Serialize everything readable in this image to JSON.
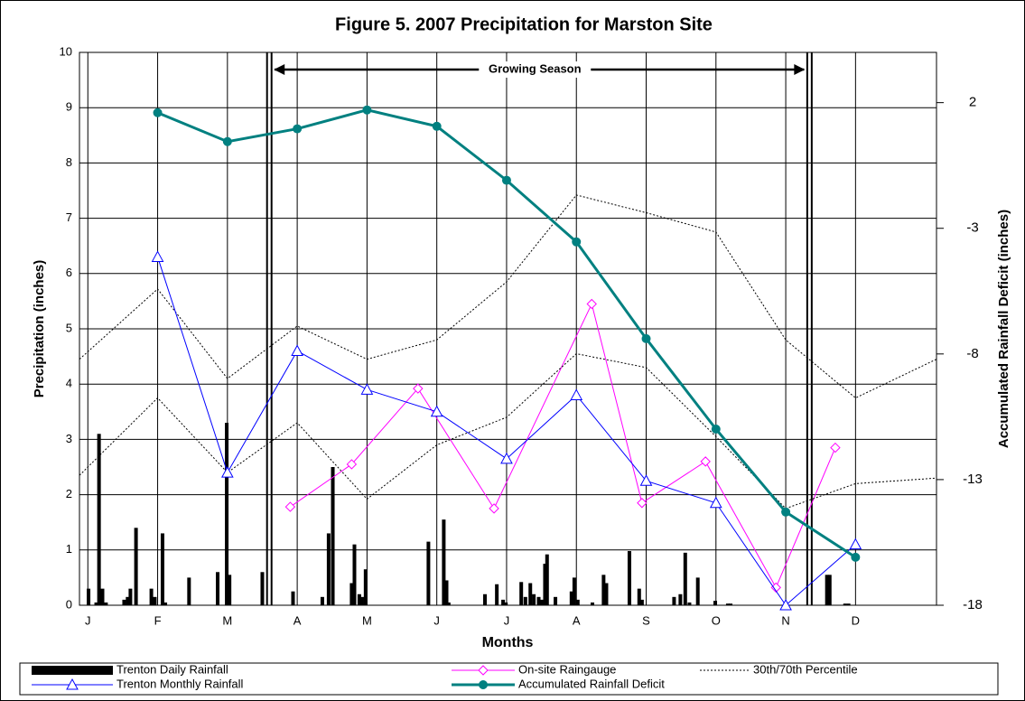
{
  "chart_data": {
    "type": "line",
    "title": "Figure 5. 2007 Precipitation for Marston Site",
    "x_label": "Months",
    "y_label": "Precipitation (inches)",
    "y2_label": "Accumulated Rainfall Deficit (inches)",
    "xlim": [
      -0.12,
      12.16
    ],
    "xticks": [
      {
        "value": 0,
        "label": "J"
      },
      {
        "value": 1,
        "label": "F"
      },
      {
        "value": 2,
        "label": "M"
      },
      {
        "value": 3,
        "label": "A"
      },
      {
        "value": 4,
        "label": "M"
      },
      {
        "value": 5,
        "label": "J"
      },
      {
        "value": 6,
        "label": "J"
      },
      {
        "value": 7,
        "label": "A"
      },
      {
        "value": 8,
        "label": "S"
      },
      {
        "value": 9,
        "label": "O"
      },
      {
        "value": 10,
        "label": "N"
      },
      {
        "value": 11,
        "label": "D"
      }
    ],
    "ylim": [
      0,
      10
    ],
    "yticks": [
      0,
      1,
      2,
      3,
      4,
      5,
      6,
      7,
      8,
      9,
      10
    ],
    "y2lim": [
      -18,
      4
    ],
    "y2ticks": [
      -18,
      -13,
      -8,
      -3,
      2
    ],
    "grid": true,
    "growing_season": {
      "label": "Growing Season",
      "start": 2.6,
      "end": 10.34
    },
    "series": [
      {
        "name": "Trenton Daily Rainfall",
        "kind": "bar",
        "color": "#000000",
        "x": [
          0.01,
          0.12,
          0.16,
          0.21,
          0.26,
          0.52,
          0.57,
          0.61,
          0.69,
          0.91,
          0.96,
          1.07,
          1.11,
          1.45,
          1.86,
          1.99,
          2.03,
          2.5,
          2.94,
          3.36,
          3.45,
          3.51,
          3.78,
          3.82,
          3.89,
          3.93,
          3.98,
          4.88,
          5.1,
          5.14,
          5.17,
          5.69,
          5.86,
          5.95,
          5.99,
          6.21,
          6.27,
          6.34,
          6.39,
          6.46,
          6.51,
          6.55,
          6.58,
          6.7,
          6.93,
          6.97,
          7.02,
          7.23,
          7.39,
          7.43,
          7.76,
          7.9,
          7.94,
          8.4,
          8.49,
          8.56,
          8.62,
          8.74,
          8.99,
          9.17,
          9.21,
          10.59,
          10.63,
          10.85,
          10.9
        ],
        "values": [
          0.3,
          0.05,
          3.1,
          0.3,
          0.05,
          0.1,
          0.15,
          0.3,
          1.4,
          0.3,
          0.15,
          1.3,
          0.05,
          0.5,
          0.6,
          3.3,
          0.55,
          0.6,
          0.25,
          0.15,
          1.3,
          2.5,
          0.4,
          1.1,
          0.2,
          0.15,
          0.65,
          1.15,
          1.55,
          0.45,
          0.05,
          0.2,
          0.38,
          0.1,
          0.05,
          0.42,
          0.15,
          0.4,
          0.2,
          0.15,
          0.1,
          0.75,
          0.92,
          0.15,
          0.25,
          0.5,
          0.1,
          0.05,
          0.55,
          0.4,
          0.98,
          0.3,
          0.1,
          0.15,
          0.2,
          0.95,
          0.05,
          0.5,
          0.08,
          0.03,
          0.03,
          0.55,
          0.55,
          0.03,
          0.03
        ]
      },
      {
        "name": "On-site Raingauge",
        "kind": "line",
        "marker": "diamond",
        "color": "#ff00ff",
        "x": [
          2.9,
          3.78,
          4.73,
          5.82,
          7.22,
          7.94,
          8.85,
          9.86,
          10.71
        ],
        "values": [
          1.78,
          2.55,
          3.92,
          1.75,
          5.45,
          1.85,
          2.6,
          0.32,
          2.85
        ]
      },
      {
        "name": "30th/70th Percentile",
        "kind": "dotted",
        "color": "#000000",
        "x": [
          -0.12,
          1,
          2,
          3,
          4,
          5,
          6,
          7,
          8,
          9,
          10,
          11,
          12.16
        ],
        "values": [
          [
            4.45,
            5.72,
            4.1,
            5.05,
            4.45,
            4.8,
            5.85,
            7.42,
            7.1,
            6.75,
            4.8,
            3.75,
            4.45
          ],
          [
            2.35,
            3.75,
            2.4,
            3.3,
            1.92,
            2.9,
            3.4,
            4.55,
            4.3,
            3.05,
            1.75,
            2.2,
            2.3
          ]
        ]
      },
      {
        "name": "Trenton Monthly Rainfall",
        "kind": "line",
        "marker": "triangle",
        "color": "#0000ff",
        "x": [
          1,
          2,
          3,
          4,
          5,
          6,
          7,
          8,
          9,
          10,
          11
        ],
        "values": [
          6.3,
          2.4,
          4.6,
          3.9,
          3.5,
          2.65,
          3.8,
          2.25,
          1.85,
          0,
          1.1
        ]
      },
      {
        "name": "Accumulated Rainfall Deficit",
        "kind": "line",
        "marker": "circle",
        "color": "#008080",
        "axis": "y2",
        "x": [
          1,
          2,
          3,
          4,
          5,
          6,
          7,
          8,
          9,
          10,
          11
        ],
        "values": [
          1.6,
          0.45,
          0.96,
          1.71,
          1.06,
          -1.09,
          -3.54,
          -7.39,
          -10.99,
          -14.29,
          -16.09
        ]
      }
    ]
  }
}
